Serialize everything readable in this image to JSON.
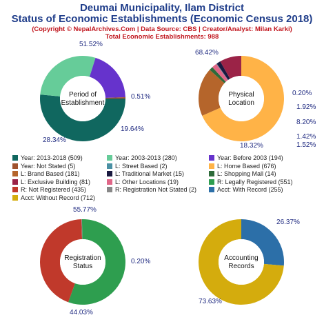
{
  "header": {
    "title_line1": "Deumai Municipality, Ilam District",
    "title_line2": "Status of Economic Establishments (Economic Census 2018)",
    "copyright": "(Copyright © NepalArchives.Com | Data Source: CBS | Creator/Analyst: Milan Karki)",
    "total": "Total Economic Establishments: 988"
  },
  "chart_data": [
    {
      "type": "pie",
      "center_label": [
        "Period of",
        "Establishment"
      ],
      "slices": [
        {
          "legend": "Year: 2013-2018 (509)",
          "value": 51.52,
          "label": "51.52%",
          "color": "#10675f"
        },
        {
          "legend": "Year: 2003-2013 (280)",
          "value": 28.34,
          "label": "28.34%",
          "color": "#66cc99"
        },
        {
          "legend": "Year: Before 2003 (194)",
          "value": 19.64,
          "label": "19.64%",
          "color": "#6633cc"
        },
        {
          "legend": "Year: Not Stated (5)",
          "value": 0.51,
          "label": "0.51%",
          "color": "#a0522d"
        }
      ]
    },
    {
      "type": "pie",
      "center_label": [
        "Physical",
        "Location"
      ],
      "slices": [
        {
          "legend": "L: Home Based (676)",
          "value": 68.42,
          "label": "68.42%",
          "color": "#ffb347"
        },
        {
          "legend": "L: Brand Based (181)",
          "value": 18.32,
          "label": "18.32%",
          "color": "#b5652b"
        },
        {
          "legend": "L: Shopping Mall (14)",
          "value": 1.42,
          "label": "1.42%",
          "color": "#2e6b3a"
        },
        {
          "legend": "L: Other Locations (19)",
          "value": 1.92,
          "label": "1.92%",
          "color": "#e06688"
        },
        {
          "legend": "L: Street Based (2)",
          "value": 0.2,
          "label": "0.20%",
          "color": "#4a90a4"
        },
        {
          "legend": "L: Traditional Market (15)",
          "value": 1.52,
          "label": "1.52%",
          "color": "#1a1a40"
        },
        {
          "legend": "L: Exclusive Building (81)",
          "value": 8.2,
          "label": "8.20%",
          "color": "#9b2347"
        }
      ]
    },
    {
      "type": "pie",
      "center_label": [
        "Registration",
        "Status"
      ],
      "slices": [
        {
          "legend": "R: Legally Registered (551)",
          "value": 55.77,
          "label": "55.77%",
          "color": "#2e9e4f"
        },
        {
          "legend": "R: Not Registered (435)",
          "value": 44.03,
          "label": "44.03%",
          "color": "#c0392b"
        },
        {
          "legend": "R: Registration Not Stated (2)",
          "value": 0.2,
          "label": "0.20%",
          "color": "#888888"
        }
      ]
    },
    {
      "type": "pie",
      "center_label": [
        "Accounting",
        "Records"
      ],
      "slices": [
        {
          "legend": "Acct: With Record (255)",
          "value": 26.37,
          "label": "26.37%",
          "color": "#2c6fa8"
        },
        {
          "legend": "Acct: Without Record (712)",
          "value": 73.63,
          "label": "73.63%",
          "color": "#d4ac0d"
        }
      ]
    }
  ],
  "legend": [
    {
      "text": "Year: 2013-2018 (509)",
      "color": "#10675f"
    },
    {
      "text": "Year: 2003-2013 (280)",
      "color": "#66cc99"
    },
    {
      "text": "Year: Before 2003 (194)",
      "color": "#6633cc"
    },
    {
      "text": "Year: Not Stated (5)",
      "color": "#a0522d"
    },
    {
      "text": "L: Street Based (2)",
      "color": "#4a90a4"
    },
    {
      "text": "L: Home Based (676)",
      "color": "#ffb347"
    },
    {
      "text": "L: Brand Based (181)",
      "color": "#b5652b"
    },
    {
      "text": "L: Traditional Market (15)",
      "color": "#1a1a40"
    },
    {
      "text": "L: Shopping Mall (14)",
      "color": "#2e6b3a"
    },
    {
      "text": "L: Exclusive Building (81)",
      "color": "#9b2347"
    },
    {
      "text": "L: Other Locations (19)",
      "color": "#e06688"
    },
    {
      "text": "R: Legally Registered (551)",
      "color": "#2e9e4f"
    },
    {
      "text": "R: Not Registered (435)",
      "color": "#c0392b"
    },
    {
      "text": "R: Registration Not Stated (2)",
      "color": "#888888"
    },
    {
      "text": "Acct: With Record (255)",
      "color": "#2c6fa8"
    },
    {
      "text": "Acct: Without Record (712)",
      "color": "#d4ac0d"
    }
  ]
}
